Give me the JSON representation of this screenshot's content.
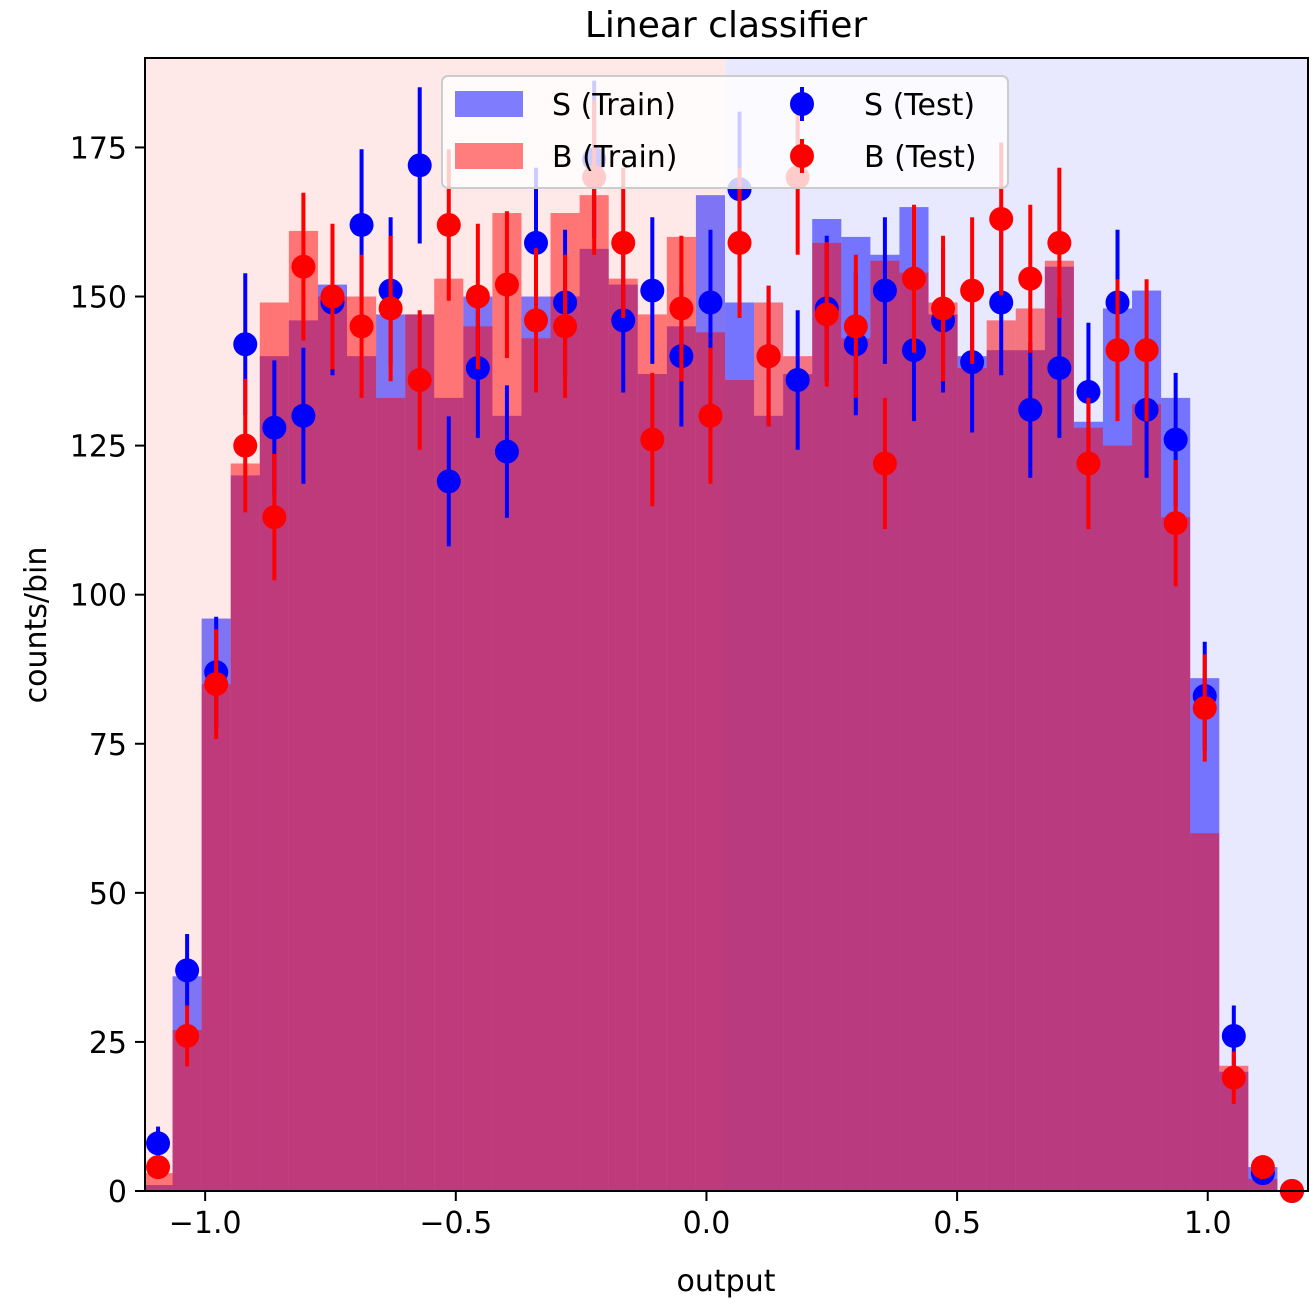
{
  "chart_data": {
    "type": "bar",
    "title": "Linear classifier",
    "xlabel": "output",
    "ylabel": "counts/bin",
    "xlim": [
      -1.12,
      1.2
    ],
    "ylim": [
      0,
      190
    ],
    "xticks": [
      -1.0,
      -0.5,
      0.0,
      0.5,
      1.0
    ],
    "xtick_labels": [
      "−1.0",
      "−0.5",
      "0.0",
      "0.5",
      "1.0"
    ],
    "yticks": [
      0,
      25,
      50,
      75,
      100,
      125,
      150,
      175
    ],
    "ytick_labels": [
      "0",
      "25",
      "50",
      "75",
      "100",
      "125",
      "150",
      "175"
    ],
    "grid": false,
    "legend_position": "top-center",
    "decision_threshold": 0.038,
    "background_regions": [
      {
        "from": -1.12,
        "to": 0.038,
        "color": "#ffe8e8"
      },
      {
        "from": 0.038,
        "to": 1.2,
        "color": "#e8e8ff"
      }
    ],
    "bin_edges": [
      -1.123,
      -1.065,
      -1.007,
      -0.949,
      -0.891,
      -0.833,
      -0.775,
      -0.717,
      -0.659,
      -0.601,
      -0.543,
      -0.485,
      -0.427,
      -0.369,
      -0.311,
      -0.253,
      -0.195,
      -0.137,
      -0.079,
      -0.021,
      0.037,
      0.095,
      0.153,
      0.211,
      0.269,
      0.327,
      0.385,
      0.443,
      0.501,
      0.559,
      0.617,
      0.675,
      0.733,
      0.791,
      0.849,
      0.907,
      0.965,
      1.023,
      1.081,
      1.139,
      1.197
    ],
    "series": [
      {
        "name": "S (Train)",
        "kind": "histogram",
        "color": "#0000ff",
        "alpha": 0.5,
        "values": [
          1,
          36,
          96,
          120,
          140,
          146,
          152,
          140,
          147,
          147,
          133,
          150,
          130,
          150,
          150,
          158,
          152,
          137,
          145,
          167,
          149,
          130,
          137,
          163,
          160,
          157,
          165,
          147,
          140,
          141,
          141,
          155,
          129,
          148,
          151,
          133,
          86,
          20,
          4,
          0
        ]
      },
      {
        "name": "B (Train)",
        "kind": "histogram",
        "color": "#ff0000",
        "alpha": 0.5,
        "values": [
          3,
          27,
          85,
          122,
          149,
          161,
          150,
          150,
          133,
          147,
          153,
          145,
          164,
          143,
          164,
          167,
          153,
          147,
          160,
          144,
          136,
          149,
          140,
          159,
          143,
          156,
          154,
          149,
          138,
          146,
          148,
          156,
          128,
          125,
          132,
          113,
          60,
          21,
          2,
          0
        ]
      },
      {
        "name": "S (Test)",
        "kind": "errorbar",
        "color": "#0000ff",
        "x": [
          -1.094,
          -1.036,
          -0.978,
          -0.92,
          -0.862,
          -0.804,
          -0.746,
          -0.688,
          -0.63,
          -0.572,
          -0.514,
          -0.456,
          -0.398,
          -0.34,
          -0.282,
          -0.224,
          -0.166,
          -0.108,
          -0.05,
          0.008,
          0.066,
          0.124,
          0.182,
          0.24,
          0.298,
          0.356,
          0.414,
          0.472,
          0.53,
          0.588,
          0.646,
          0.704,
          0.762,
          0.82,
          0.878,
          0.936,
          0.994,
          1.052,
          1.11,
          1.168
        ],
        "values": [
          8,
          37,
          87,
          142,
          128,
          130,
          149,
          162,
          151,
          172,
          119,
          138,
          124,
          159,
          149,
          173,
          146,
          151,
          140,
          149,
          168,
          140,
          136,
          148,
          142,
          151,
          141,
          146,
          139,
          149,
          131,
          138,
          134,
          149,
          131,
          126,
          83,
          26,
          3,
          0
        ],
        "errors": [
          2.8,
          6.1,
          9.3,
          11.9,
          11.3,
          11.4,
          12.2,
          12.7,
          12.3,
          13.1,
          10.9,
          11.7,
          11.1,
          12.6,
          12.2,
          13.2,
          12.1,
          12.3,
          11.8,
          12.2,
          13.0,
          11.8,
          11.7,
          12.2,
          11.9,
          12.3,
          11.9,
          12.1,
          11.8,
          12.2,
          11.4,
          11.7,
          11.6,
          12.2,
          11.4,
          11.2,
          9.1,
          5.1,
          1.7,
          0
        ]
      },
      {
        "name": "B (Test)",
        "kind": "errorbar",
        "color": "#ff0000",
        "x": [
          -1.094,
          -1.036,
          -0.978,
          -0.92,
          -0.862,
          -0.804,
          -0.746,
          -0.688,
          -0.63,
          -0.572,
          -0.514,
          -0.456,
          -0.398,
          -0.34,
          -0.282,
          -0.224,
          -0.166,
          -0.108,
          -0.05,
          0.008,
          0.066,
          0.124,
          0.182,
          0.24,
          0.298,
          0.356,
          0.414,
          0.472,
          0.53,
          0.588,
          0.646,
          0.704,
          0.762,
          0.82,
          0.878,
          0.936,
          0.994,
          1.052,
          1.11,
          1.168
        ],
        "values": [
          4,
          26,
          85,
          125,
          113,
          155,
          150,
          145,
          148,
          136,
          162,
          150,
          152,
          146,
          145,
          170,
          159,
          126,
          148,
          130,
          159,
          140,
          170,
          147,
          145,
          122,
          153,
          148,
          151,
          163,
          153,
          159,
          122,
          141,
          141,
          112,
          81,
          19,
          4,
          0
        ],
        "errors": [
          2.0,
          5.1,
          9.2,
          11.2,
          10.6,
          12.4,
          12.2,
          12.0,
          12.2,
          11.7,
          12.7,
          12.2,
          12.3,
          12.1,
          12.0,
          13.0,
          12.6,
          11.2,
          12.2,
          11.4,
          12.6,
          11.8,
          13.0,
          12.1,
          12.0,
          11.0,
          12.4,
          12.2,
          12.3,
          12.8,
          12.4,
          12.6,
          11.0,
          11.9,
          11.9,
          10.6,
          9.0,
          4.4,
          2.0,
          0
        ]
      }
    ]
  }
}
